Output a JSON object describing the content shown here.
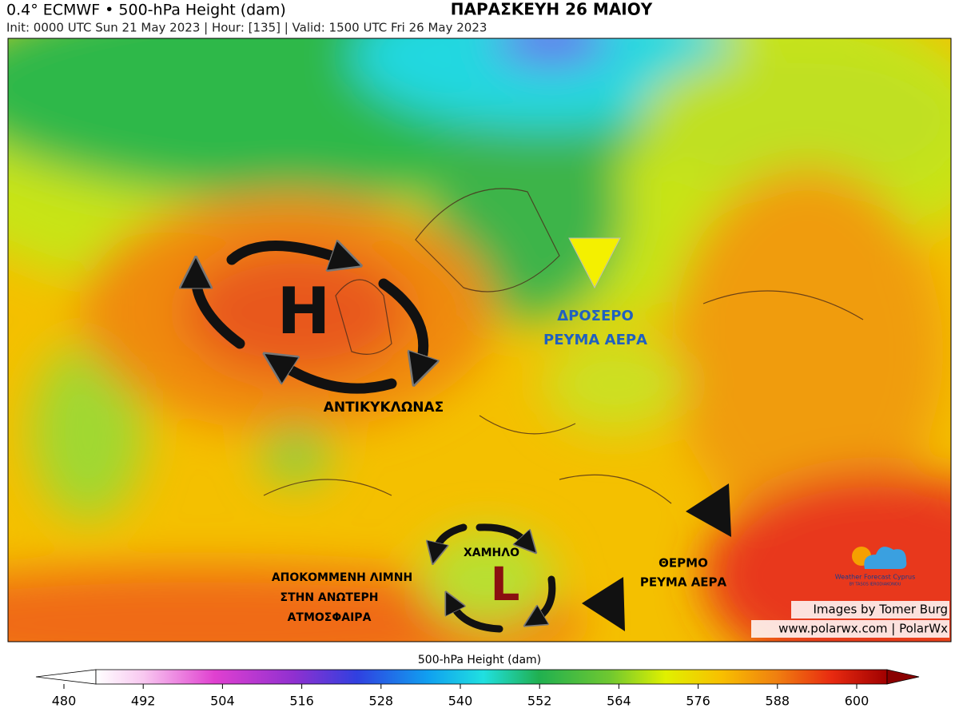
{
  "header": {
    "title": "0.4° ECMWF • 500-hPa Height (dam)",
    "headline": "ΠΑΡΑΣΚΕΥΗ 26 ΜΑΙΟΥ",
    "subtitle": "Init: 0000 UTC Sun 21 May 2023 | Hour: [135] | Valid: 1500 UTC Fri 26 May 2023"
  },
  "annotations": {
    "high_letter": "H",
    "high_label": "ΑΝΤΙΚΥΚΛΩΝΑΣ",
    "cool_flow": [
      "ΔΡΟΣΕΡΟ",
      "ΡΕΥΜΑ ΑΕΡΑ"
    ],
    "warm_flow": [
      "ΘΕΡΜΟ",
      "ΡΕΥΜΑ ΑΕΡΑ"
    ],
    "low_label": "ΧΑΜΗΛΟ",
    "low_letter": "L",
    "cutoff_low": [
      "ΑΠΟΚΟΜΜΕΝΗ ΛΙΜΝΗ",
      "ΣΤΗΝ ΑΝΩΤΕΡΗ",
      "ΑΤΜΟΣΦΑΙΡΑ"
    ]
  },
  "credits": {
    "logo": "Weather Forecast Cyprus",
    "logo_sub": "BY TASOS IERODIAKONOU",
    "images_by": "Images by Tomer Burg",
    "site": "www.polarwx.com | PolarWx"
  },
  "colorbar": {
    "label": "500-hPa Height (dam)",
    "range": [
      480,
      600
    ],
    "ticks": [
      480,
      492,
      504,
      516,
      528,
      540,
      552,
      564,
      576,
      588,
      600
    ]
  }
}
